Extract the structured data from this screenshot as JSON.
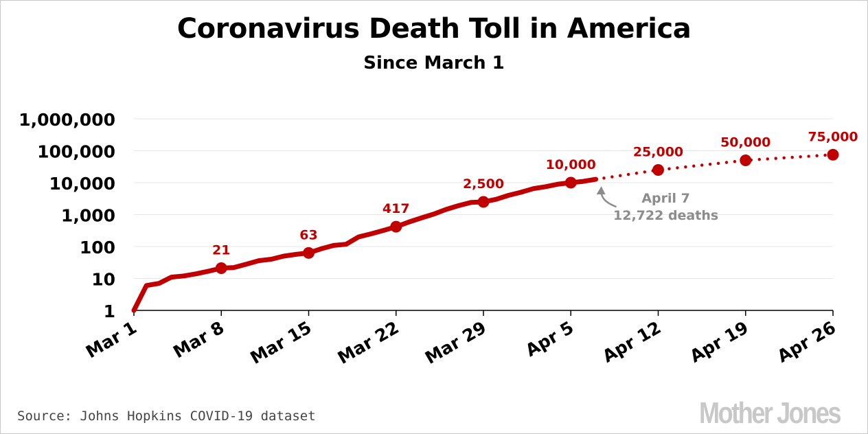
{
  "chart_data": {
    "type": "line",
    "title": "Coronavirus Death Toll in America",
    "subtitle": "Since March 1",
    "scale": "log",
    "ylim": [
      1,
      1000000
    ],
    "y_tick_labels": [
      "1",
      "10",
      "100",
      "1,000",
      "10,000",
      "100,000",
      "1,000,000"
    ],
    "y_tick_values": [
      1,
      10,
      100,
      1000,
      10000,
      100000,
      1000000
    ],
    "x_tick_labels": [
      "Mar 1",
      "Mar 8",
      "Mar 15",
      "Mar 22",
      "Mar 29",
      "Apr 5",
      "Apr 12",
      "Apr 19",
      "Apr 26"
    ],
    "x_tick_dates": [
      "2020-03-01",
      "2020-03-08",
      "2020-03-15",
      "2020-03-22",
      "2020-03-29",
      "2020-04-05",
      "2020-04-12",
      "2020-04-19",
      "2020-04-26"
    ],
    "grid": true,
    "series": [
      {
        "style": "solid",
        "color": "#c00000",
        "x": [
          "2020-03-01",
          "2020-03-02",
          "2020-03-03",
          "2020-03-04",
          "2020-03-05",
          "2020-03-06",
          "2020-03-07",
          "2020-03-08",
          "2020-03-09",
          "2020-03-10",
          "2020-03-11",
          "2020-03-12",
          "2020-03-13",
          "2020-03-14",
          "2020-03-15",
          "2020-03-16",
          "2020-03-17",
          "2020-03-18",
          "2020-03-19",
          "2020-03-20",
          "2020-03-21",
          "2020-03-22",
          "2020-03-23",
          "2020-03-24",
          "2020-03-25",
          "2020-03-26",
          "2020-03-27",
          "2020-03-28",
          "2020-03-29",
          "2020-03-30",
          "2020-03-31",
          "2020-04-01",
          "2020-04-02",
          "2020-04-03",
          "2020-04-04",
          "2020-04-05",
          "2020-04-06",
          "2020-04-07"
        ],
        "values": [
          1,
          6,
          7,
          11,
          12,
          14,
          17,
          21,
          22,
          28,
          36,
          40,
          50,
          57,
          63,
          85,
          108,
          118,
          200,
          250,
          320,
          417,
          580,
          780,
          1030,
          1450,
          1900,
          2400,
          2500,
          3000,
          4000,
          5000,
          6500,
          7500,
          9000,
          10000,
          11000,
          12722
        ]
      },
      {
        "style": "dotted",
        "color": "#c00000",
        "x": [
          "2020-04-07",
          "2020-04-12",
          "2020-04-19",
          "2020-04-26"
        ],
        "values": [
          12722,
          25000,
          50000,
          75000
        ]
      }
    ],
    "markers": [
      {
        "date": "2020-03-08",
        "value": 21,
        "label": "21"
      },
      {
        "date": "2020-03-15",
        "value": 63,
        "label": "63"
      },
      {
        "date": "2020-03-22",
        "value": 417,
        "label": "417"
      },
      {
        "date": "2020-03-29",
        "value": 2500,
        "label": "2,500"
      },
      {
        "date": "2020-04-05",
        "value": 10000,
        "label": "10,000"
      },
      {
        "date": "2020-04-12",
        "value": 25000,
        "label": "25,000"
      },
      {
        "date": "2020-04-19",
        "value": 50000,
        "label": "50,000"
      },
      {
        "date": "2020-04-26",
        "value": 75000,
        "label": "75,000"
      }
    ],
    "annotation": {
      "line1": "April 7",
      "line2": "12,722 deaths",
      "date": "2020-04-07",
      "value": 12722
    }
  },
  "footer": {
    "source": "Source: Johns Hopkins COVID-19 dataset",
    "logo": "Mother Jones"
  },
  "colors": {
    "line": "#c00000",
    "annotation": "#8c8c8c",
    "grid": "#e6e6e6"
  }
}
